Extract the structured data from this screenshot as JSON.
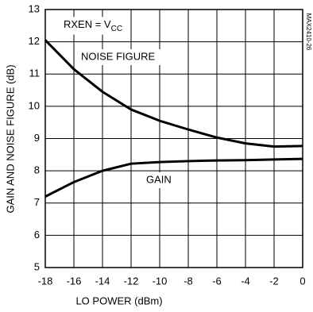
{
  "chart_data": {
    "type": "line",
    "x": [
      -18,
      -16,
      -14,
      -12,
      -10,
      -8,
      -6,
      -4,
      -2,
      0
    ],
    "series": [
      {
        "name": "NOISE FIGURE",
        "color": "#000000",
        "values": [
          12.05,
          11.15,
          10.45,
          9.9,
          9.55,
          9.28,
          9.03,
          8.85,
          8.75,
          8.77
        ]
      },
      {
        "name": "GAIN",
        "color": "#000000",
        "values": [
          7.2,
          7.65,
          8.0,
          8.22,
          8.27,
          8.3,
          8.32,
          8.33,
          8.35,
          8.37
        ]
      }
    ],
    "xlabel": "LO POWER (dBm)",
    "ylabel": "GAIN AND NOISE FIGURE (dB)",
    "annotation": {
      "text": "RXEN = V",
      "subscript": "CC"
    },
    "figure_id": "MAX2410-26",
    "xlim": [
      -18,
      0
    ],
    "xticks": [
      -18,
      -16,
      -14,
      -12,
      -10,
      -8,
      -6,
      -4,
      -2,
      0
    ],
    "ylim": [
      5,
      13
    ],
    "yticks": [
      5,
      6,
      7,
      8,
      9,
      10,
      11,
      12,
      13
    ],
    "grid": true
  }
}
